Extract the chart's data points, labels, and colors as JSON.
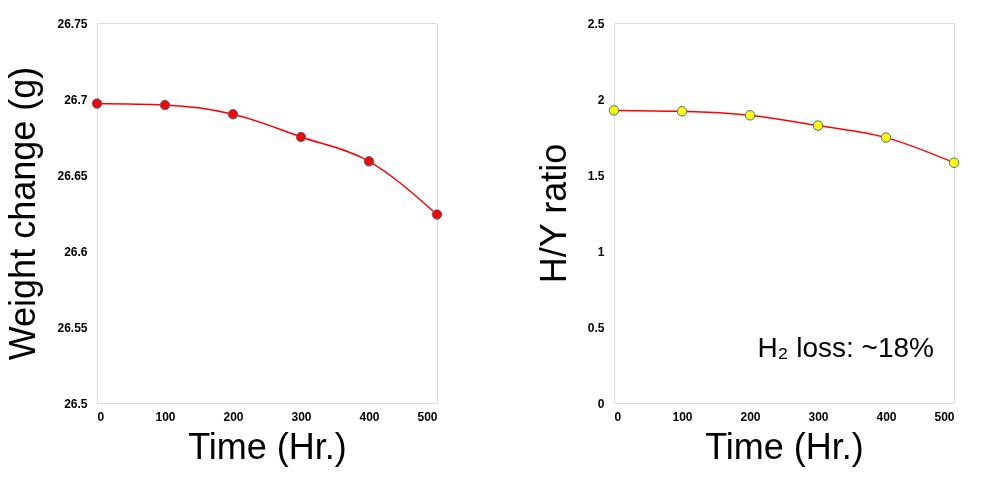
{
  "chart_data": [
    {
      "type": "line",
      "xlabel": "Time (Hr.)",
      "ylabel": "Weight change (g)",
      "x": [
        0,
        100,
        200,
        300,
        400,
        500
      ],
      "series": [
        {
          "color": "#ff0000",
          "values": [
            26.697,
            26.696,
            26.69,
            26.675,
            26.659,
            26.624
          ]
        }
      ],
      "xlim": [
        0,
        500
      ],
      "xticks": [
        0,
        100,
        200,
        300,
        400,
        500
      ],
      "ylim": [
        26.5,
        26.75
      ],
      "yticks": [
        26.5,
        26.55,
        26.6,
        26.65,
        26.7,
        26.75
      ],
      "grid": false,
      "marker": "circle",
      "line_style": "solid"
    },
    {
      "type": "line",
      "xlabel": "Time (Hr.)",
      "ylabel": "H/Y ratio",
      "x": [
        0,
        100,
        200,
        300,
        400,
        500
      ],
      "series": [
        {
          "color": "#ffff00",
          "values": [
            1.925,
            1.919,
            1.893,
            1.825,
            1.746,
            1.581
          ]
        }
      ],
      "xlim": [
        0,
        500
      ],
      "xticks": [
        0,
        100,
        200,
        300,
        400,
        500
      ],
      "ylim": [
        0,
        2.5
      ],
      "yticks": [
        0,
        0.5,
        1,
        1.5,
        2,
        2.5
      ],
      "grid": false,
      "marker": "circle",
      "line_style": "solid",
      "annotations": [
        "H₂ loss: ~18%"
      ]
    }
  ]
}
